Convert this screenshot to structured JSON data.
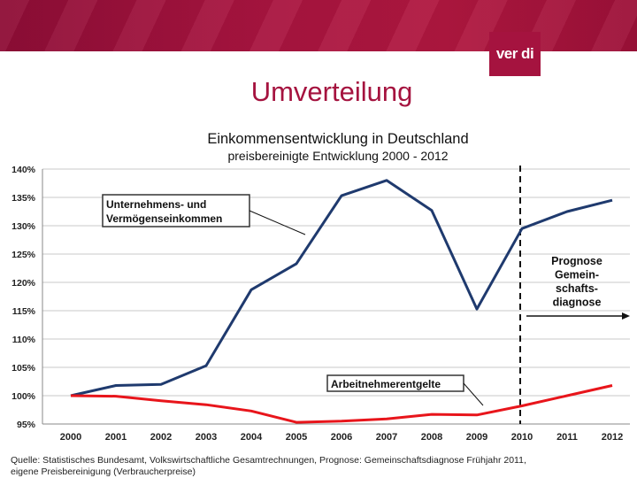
{
  "slide": {
    "title": "Umverteilung",
    "logo_text": "ver di"
  },
  "chart_data": {
    "type": "line",
    "title": "Einkommensentwicklung in Deutschland",
    "subtitle": "preisbereinigte  Entwicklung  2000  -  2012",
    "categories": [
      "2000",
      "2001",
      "2002",
      "2003",
      "2004",
      "2005",
      "2006",
      "2007",
      "2008",
      "2009",
      "2010",
      "2011",
      "2012"
    ],
    "ylim": [
      95,
      140
    ],
    "yticks": [
      95,
      100,
      105,
      110,
      115,
      120,
      125,
      130,
      135,
      140
    ],
    "ytick_labels": [
      "95%",
      "100%",
      "105%",
      "110%",
      "115%",
      "120%",
      "125%",
      "130%",
      "135%",
      "140%"
    ],
    "series": [
      {
        "name": "Unternehmens- und Vermögenseinkommen",
        "label_line1": "Unternehmens- und",
        "label_line2": "Vermögenseinkommen",
        "color": "#1f3a6e",
        "values": [
          100.0,
          101.8,
          102.0,
          105.3,
          118.7,
          123.3,
          135.3,
          138.0,
          132.7,
          115.3,
          129.5,
          132.5,
          134.5
        ]
      },
      {
        "name": "Arbeitnehmerentgelte",
        "label": "Arbeitnehmerentgelte",
        "color": "#e8151b",
        "values": [
          100.0,
          99.9,
          99.1,
          98.4,
          97.3,
          95.3,
          95.5,
          95.9,
          96.7,
          96.6,
          98.2,
          100.0,
          101.8
        ]
      }
    ],
    "forecast_start": "2010",
    "forecast_text": [
      "Prognose",
      "Gemein-",
      "schafts-",
      "diagnose"
    ],
    "source_line1": "Quelle: Statistisches Bundesamt, Volkswirtschaftliche Gesamtrechnungen, Prognose: Gemeinschaftsdiagnose Frühjahr 2011,",
    "source_line2": "eigene Preisbereinigung (Verbraucherpreise)"
  }
}
